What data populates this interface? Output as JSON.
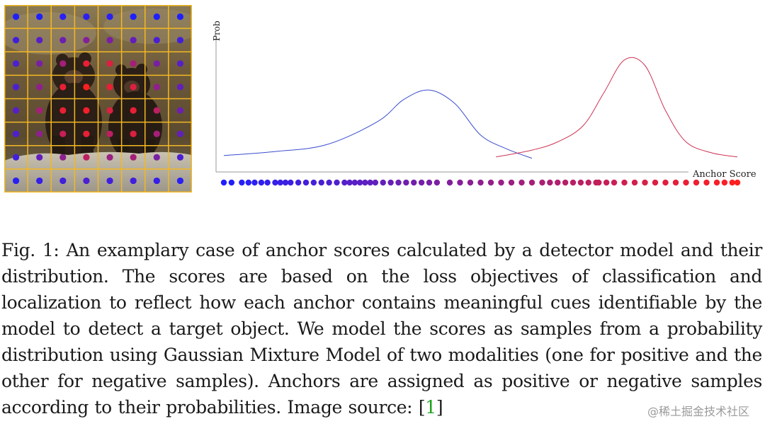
{
  "figure": {
    "anchor_grid": {
      "rows": 8,
      "cols": 8,
      "grid_color": "#f2b823",
      "scores": [
        [
          0.0,
          0.0,
          0.05,
          0.05,
          0.05,
          0.0,
          0.0,
          0.0
        ],
        [
          0.15,
          0.25,
          0.35,
          0.45,
          0.4,
          0.3,
          0.2,
          0.15
        ],
        [
          0.2,
          0.4,
          0.6,
          0.9,
          0.85,
          0.6,
          0.4,
          0.25
        ],
        [
          0.2,
          0.5,
          0.9,
          1.0,
          0.9,
          0.85,
          0.5,
          0.3
        ],
        [
          0.25,
          0.6,
          0.9,
          0.95,
          0.85,
          0.9,
          0.7,
          0.35
        ],
        [
          0.2,
          0.5,
          0.75,
          0.9,
          0.7,
          0.85,
          0.6,
          0.3
        ],
        [
          0.15,
          0.3,
          0.5,
          0.7,
          0.55,
          0.6,
          0.4,
          0.2
        ],
        [
          0.05,
          0.1,
          0.15,
          0.2,
          0.15,
          0.15,
          0.1,
          0.05
        ]
      ]
    },
    "distribution_plot": {
      "y_label": "Prob.",
      "x_label": "Anchor Score",
      "negative_color": "#3a4ccc",
      "positive_color": "#cc3355",
      "dot_low_color": "#1f1fff",
      "dot_high_color": "#ff1f1f"
    }
  },
  "chart_data": {
    "type": "line",
    "title": "",
    "xlabel": "Anchor Score",
    "ylabel": "Prob.",
    "xlim": [
      0,
      1
    ],
    "ylim": [
      0,
      1
    ],
    "series": [
      {
        "x": [
          0.0,
          0.1,
          0.2,
          0.3,
          0.35,
          0.4,
          0.45,
          0.5,
          0.55,
          0.6
        ],
        "values": [
          0.12,
          0.15,
          0.2,
          0.37,
          0.53,
          0.6,
          0.5,
          0.27,
          0.17,
          0.1
        ]
      },
      {
        "x": [
          0.53,
          0.6,
          0.65,
          0.7,
          0.74,
          0.78,
          0.82,
          0.86,
          0.9,
          0.95,
          1.0
        ],
        "values": [
          0.11,
          0.16,
          0.22,
          0.34,
          0.58,
          0.82,
          0.78,
          0.45,
          0.22,
          0.14,
          0.11
        ]
      }
    ],
    "anchor_scores": [
      0.0,
      0.015,
      0.035,
      0.048,
      0.06,
      0.073,
      0.085,
      0.1,
      0.11,
      0.12,
      0.13,
      0.145,
      0.16,
      0.175,
      0.19,
      0.205,
      0.22,
      0.235,
      0.245,
      0.255,
      0.265,
      0.275,
      0.285,
      0.295,
      0.31,
      0.325,
      0.34,
      0.355,
      0.37,
      0.385,
      0.4,
      0.415,
      0.44,
      0.46,
      0.48,
      0.5,
      0.52,
      0.54,
      0.56,
      0.58,
      0.6,
      0.62,
      0.635,
      0.65,
      0.665,
      0.68,
      0.695,
      0.71,
      0.725,
      0.73,
      0.745,
      0.76,
      0.78,
      0.8,
      0.82,
      0.84,
      0.86,
      0.88,
      0.9,
      0.92,
      0.94,
      0.96,
      0.975,
      0.99,
      1.0
    ]
  },
  "caption": {
    "text": "Fig. 1: An examplary case of anchor scores calculated by a detector model and their distribution. The scores are based on the loss objectives of classification and localization to reflect how each anchor contains meaningful cues identifiable by the model to detect a target object. We model the scores as samples from a probability distribution using Gaussian Mixture Model of two modalities (one for positive and the other for negative samples). Anchors are assigned as positive or negative samples according to their probabilities. Image source: ",
    "cite_open": "[",
    "cite_num": "1",
    "cite_close": "]"
  },
  "watermark": "@稀土掘金技术社区"
}
